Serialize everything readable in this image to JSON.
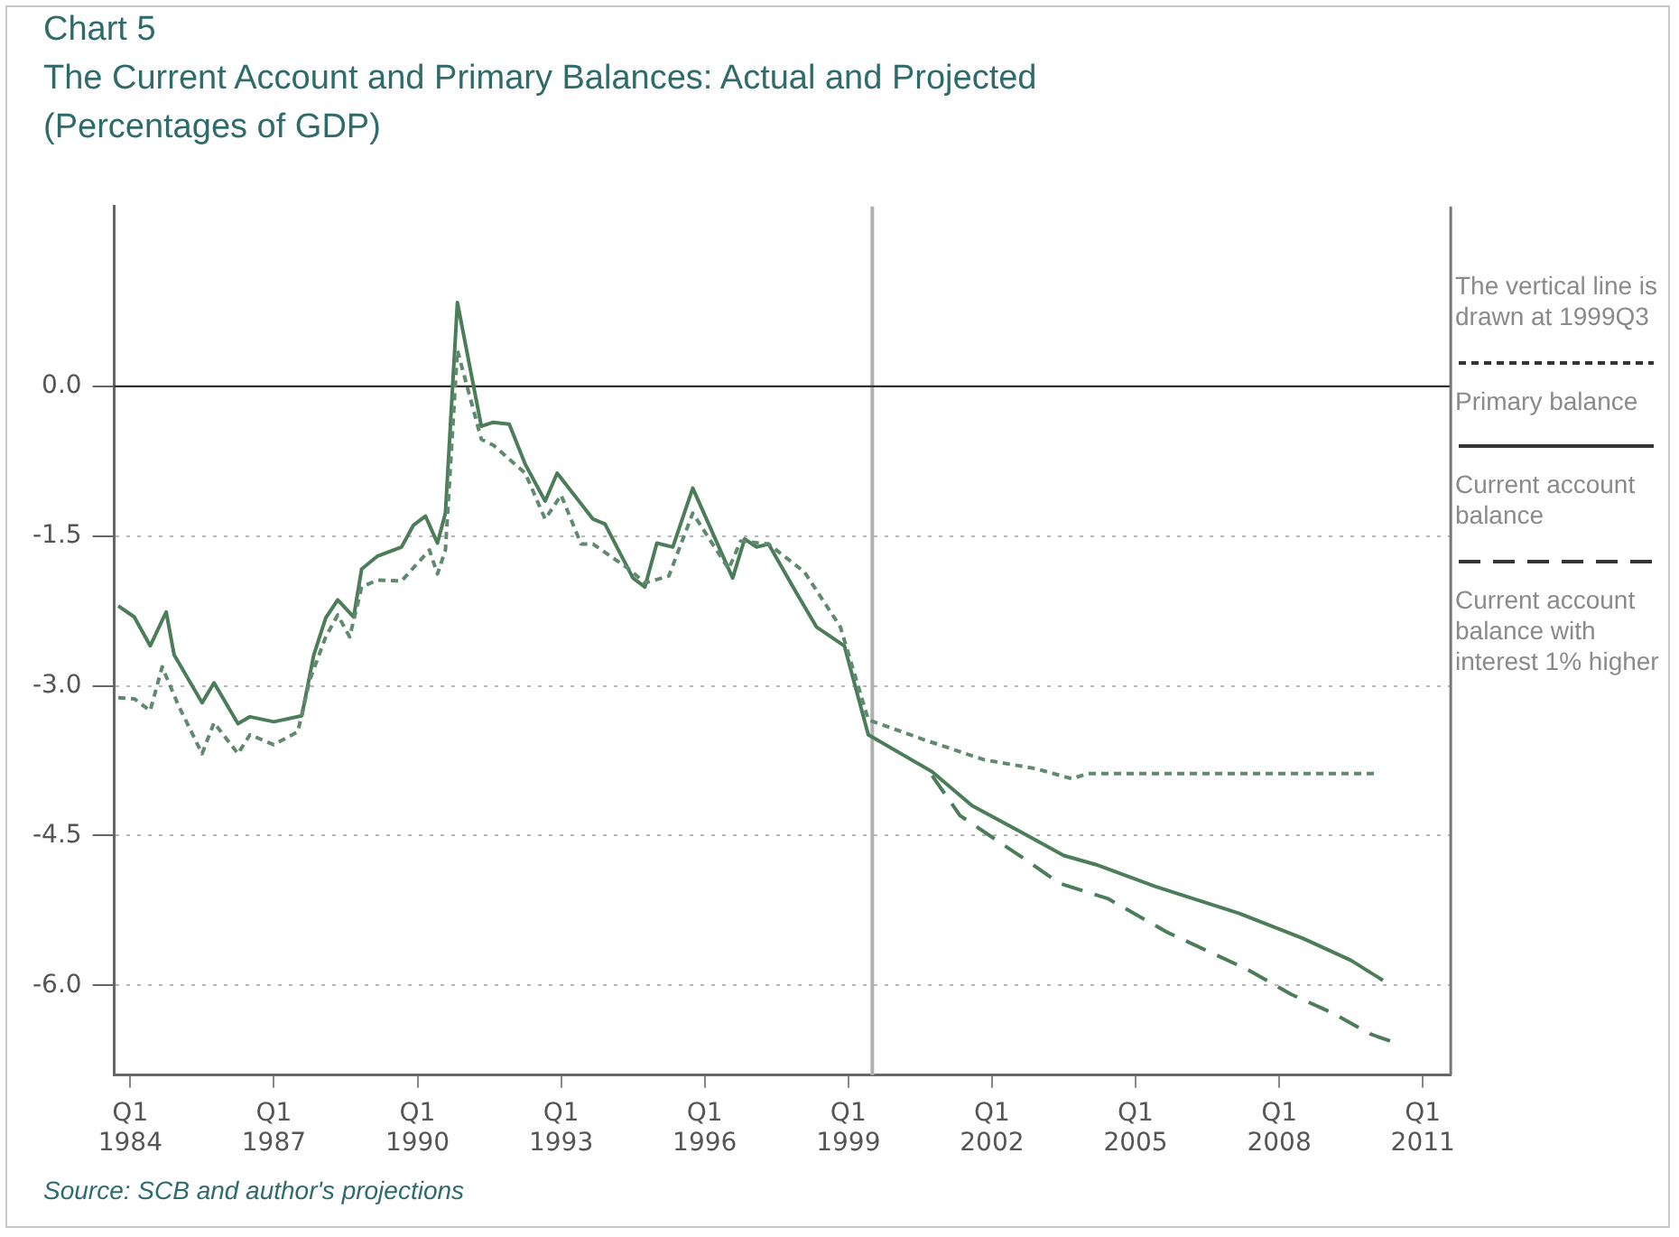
{
  "chart_data": {
    "type": "line",
    "title": "Chart 5",
    "subtitle": "The Current Account and Primary Balances: Actual and Projected",
    "ylabel": "(Percentages of GDP)",
    "annotations": [
      "The vertical line is drawn at 1999Q3",
      "Source: SCB and author's projections"
    ],
    "xlim": [
      "1983-09",
      "2011-08"
    ],
    "xticks": [
      {
        "value": "1984-01",
        "label": "Q1 1984"
      },
      {
        "value": "1987-01",
        "label": "Q1 1987"
      },
      {
        "value": "1990-01",
        "label": "Q1 1990"
      },
      {
        "value": "1993-01",
        "label": "Q1 1993"
      },
      {
        "value": "1996-01",
        "label": "Q1 1996"
      },
      {
        "value": "1999-01",
        "label": "Q1 1999"
      },
      {
        "value": "2002-01",
        "label": "Q1 2002"
      },
      {
        "value": "2005-01",
        "label": "Q1 2005"
      },
      {
        "value": "2008-01",
        "label": "Q1 2008"
      },
      {
        "value": "2011-01",
        "label": "Q1 2011"
      }
    ],
    "ylim": [
      -6.9,
      1.8
    ],
    "yticks": [
      {
        "value": 0,
        "label": "0.0"
      },
      {
        "value": -1.5,
        "label": "-1.5"
      },
      {
        "value": -3,
        "label": "-3.0"
      },
      {
        "value": -4.5,
        "label": "-4.5"
      },
      {
        "value": -6,
        "label": "-6.0"
      }
    ],
    "grid": "y",
    "legend": "right",
    "marker": "none",
    "ref_lines": [
      {
        "axis": "x",
        "value": "1999-07",
        "label": null,
        "color": "#b0b0b0"
      },
      {
        "axis": "y",
        "value": 0,
        "label": null,
        "color": "#333333"
      }
    ],
    "series": [
      {
        "name": "Primary balance",
        "color": "#5f8a6e",
        "line_style": "dotted",
        "x": [
          "1983-10",
          "1984-02",
          "1984-06",
          "1984-09",
          "1985-01",
          "1985-07",
          "1985-10",
          "1986-04",
          "1986-07",
          "1987-01",
          "1987-07",
          "1987-10",
          "1988-02",
          "1988-05",
          "1988-08",
          "1988-11",
          "1989-03",
          "1989-09",
          "1990-04",
          "1990-06",
          "1990-08",
          "1990-11",
          "1991-05",
          "1991-08",
          "1992-04",
          "1992-09",
          "1993-01",
          "1993-06",
          "1993-09",
          "1994-06",
          "1994-10",
          "1995-04",
          "1995-10",
          "1996-07",
          "1996-10",
          "1997-05",
          "1998-02",
          "1998-11",
          "1999-06",
          "2000-08",
          "2001-11",
          "2002-12",
          "2003-09",
          "2004-01",
          "2010-02"
        ],
        "values": [
          -3.12,
          -3.13,
          -3.25,
          -2.81,
          -3.19,
          -3.68,
          -3.37,
          -3.68,
          -3.49,
          -3.59,
          -3.46,
          -2.94,
          -2.51,
          -2.29,
          -2.51,
          -2.01,
          -1.94,
          -1.95,
          -1.64,
          -1.88,
          -1.64,
          0.36,
          -0.53,
          -0.59,
          -0.87,
          -1.33,
          -1.09,
          -1.58,
          -1.58,
          -1.83,
          -1.97,
          -1.9,
          -1.27,
          -1.83,
          -1.55,
          -1.58,
          -1.86,
          -2.41,
          -3.34,
          -3.54,
          -3.74,
          -3.83,
          -3.93,
          -3.88,
          -3.88
        ]
      },
      {
        "name": "Current account balance",
        "color": "#4a7d58",
        "line_style": "solid",
        "x": [
          "1983-10",
          "1984-02",
          "1984-06",
          "1984-10",
          "1984-12",
          "1985-07",
          "1985-10",
          "1986-04",
          "1986-07",
          "1987-01",
          "1987-08",
          "1987-11",
          "1988-02",
          "1988-05",
          "1988-09",
          "1988-11",
          "1989-03",
          "1989-09",
          "1989-12",
          "1990-03",
          "1990-06",
          "1990-08",
          "1990-11",
          "1991-05",
          "1991-08",
          "1991-12",
          "1992-04",
          "1992-09",
          "1992-12",
          "1993-09",
          "1993-12",
          "1994-07",
          "1994-10",
          "1995-01",
          "1995-05",
          "1995-10",
          "1996-08",
          "1996-11",
          "1997-02",
          "1997-05",
          "1997-12",
          "1998-05",
          "1998-12",
          "1999-06",
          "2000-10",
          "2001-08",
          "2002-09",
          "2003-07",
          "2004-03",
          "2005-06",
          "2007-03",
          "2008-07",
          "2009-07",
          "2010-03"
        ],
        "values": [
          -2.2,
          -2.31,
          -2.6,
          -2.26,
          -2.69,
          -3.17,
          -2.97,
          -3.38,
          -3.31,
          -3.36,
          -3.3,
          -2.69,
          -2.32,
          -2.14,
          -2.31,
          -1.83,
          -1.7,
          -1.61,
          -1.39,
          -1.3,
          -1.57,
          -1.27,
          0.84,
          -0.4,
          -0.36,
          -0.38,
          -0.78,
          -1.15,
          -0.87,
          -1.33,
          -1.38,
          -1.92,
          -2.01,
          -1.57,
          -1.61,
          -1.02,
          -1.92,
          -1.53,
          -1.61,
          -1.58,
          -2.07,
          -2.41,
          -2.6,
          -3.49,
          -3.86,
          -4.2,
          -4.48,
          -4.7,
          -4.79,
          -5.01,
          -5.28,
          -5.53,
          -5.75,
          -5.95
        ]
      },
      {
        "name": "Current account balance with interest 1% higher",
        "color": "#4a7d58",
        "line_style": "dashed",
        "x": [
          "2000-10",
          "2001-05",
          "2002-09",
          "2003-06",
          "2004-06",
          "2005-09",
          "2007-05",
          "2008-04",
          "2009-02",
          "2009-12",
          "2010-05"
        ],
        "values": [
          -3.9,
          -4.3,
          -4.73,
          -4.98,
          -5.13,
          -5.47,
          -5.84,
          -6.09,
          -6.27,
          -6.49,
          -6.56
        ]
      }
    ]
  }
}
